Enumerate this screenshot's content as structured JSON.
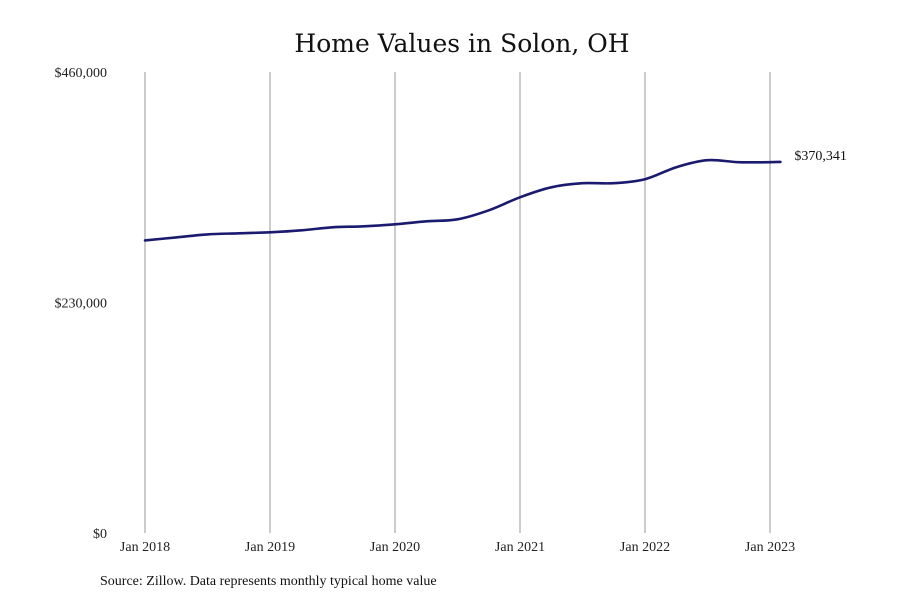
{
  "chart_data": {
    "type": "line",
    "title": "Home Values in Solon, OH",
    "xlabel": "",
    "ylabel": "",
    "source": "Source: Zillow. Data represents monthly typical home value",
    "ylim": [
      0,
      460000
    ],
    "y_ticks": [
      {
        "value": 0,
        "label": "$0"
      },
      {
        "value": 230000,
        "label": "$230,000"
      },
      {
        "value": 460000,
        "label": "$460,000"
      }
    ],
    "x_ticks": [
      "Jan 2018",
      "Jan 2019",
      "Jan 2020",
      "Jan 2021",
      "Jan 2022",
      "Jan 2023"
    ],
    "grid": "vertical",
    "line_color": "#1a1a6e",
    "end_label": "$370,341",
    "series": [
      {
        "x": [
          "2018-01",
          "2018-04",
          "2018-07",
          "2018-10",
          "2019-01",
          "2019-04",
          "2019-07",
          "2019-10",
          "2020-01",
          "2020-04",
          "2020-07",
          "2020-10",
          "2021-01",
          "2021-04",
          "2021-07",
          "2021-10",
          "2022-01",
          "2022-04",
          "2022-07",
          "2022-10",
          "2023-01",
          "2023-02"
        ],
        "values": [
          292000,
          295000,
          298000,
          299000,
          300000,
          302000,
          305000,
          306000,
          308000,
          311000,
          313000,
          322000,
          335000,
          345000,
          349000,
          349000,
          353000,
          365000,
          372000,
          370000,
          370000,
          370341
        ]
      }
    ]
  }
}
